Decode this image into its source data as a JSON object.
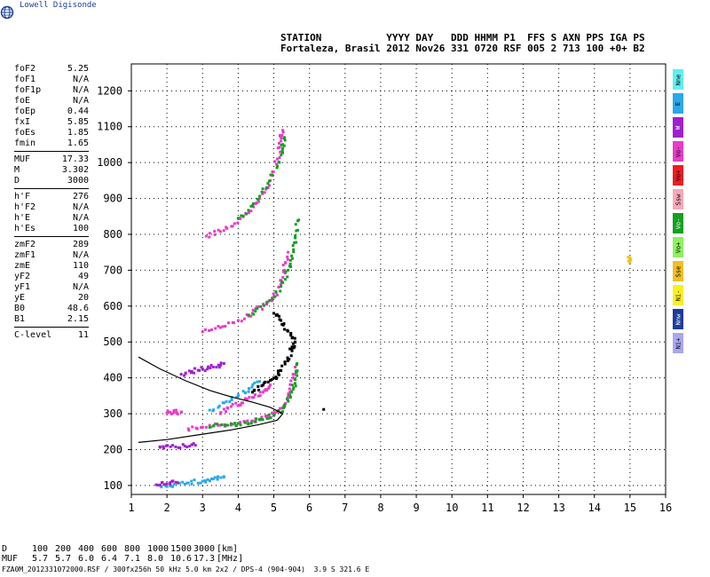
{
  "app": {
    "logo_text": "Lowell Digisonde"
  },
  "header": {
    "line1": "STATION           YYYY DAY   DDD HHMM P1  FFS S AXN PPS IGA PS",
    "line2": "Fortaleza, Brasil 2012 Nov26 331 0720 RSF 005 2 713 100 +0+ B2"
  },
  "params": {
    "group1": [
      {
        "label": "foF2",
        "value": "5.25"
      },
      {
        "label": "foF1",
        "value": "N/A"
      },
      {
        "label": "foF1p",
        "value": "N/A"
      },
      {
        "label": "foE",
        "value": "N/A"
      },
      {
        "label": "foEp",
        "value": "0.44"
      },
      {
        "label": "fxI",
        "value": "5.85"
      },
      {
        "label": "foEs",
        "value": "1.85"
      },
      {
        "label": "fmin",
        "value": "1.65"
      }
    ],
    "group2": [
      {
        "label": "MUF",
        "value": "17.33"
      },
      {
        "label": "M",
        "value": "3.302"
      },
      {
        "label": "D",
        "value": "3000"
      }
    ],
    "group3": [
      {
        "label": "h'F",
        "value": "276"
      },
      {
        "label": "h'F2",
        "value": "N/A"
      },
      {
        "label": "h'E",
        "value": "N/A"
      },
      {
        "label": "h'Es",
        "value": "100"
      }
    ],
    "group4": [
      {
        "label": "zmF2",
        "value": "289"
      },
      {
        "label": "zmF1",
        "value": "N/A"
      },
      {
        "label": "zmE",
        "value": "110"
      },
      {
        "label": "yF2",
        "value": "49"
      },
      {
        "label": "yF1",
        "value": "N/A"
      },
      {
        "label": "yE",
        "value": "20"
      },
      {
        "label": "B0",
        "value": "48.6"
      },
      {
        "label": "B1",
        "value": "2.15"
      }
    ],
    "group5": [
      {
        "label": "C-level",
        "value": "11"
      }
    ]
  },
  "legend": [
    {
      "label": "Nne",
      "color": "#5ff0f0"
    },
    {
      "label": "E",
      "color": "#2aa8e8"
    },
    {
      "label": "W",
      "color": "#a020d0"
    },
    {
      "label": "Vo-",
      "color": "#e83cc8"
    },
    {
      "label": "Vo+",
      "color": "#ee1c24"
    },
    {
      "label": "Ssw",
      "color": "#f6a8b8"
    },
    {
      "label": "Vo-",
      "color": "#14a020"
    },
    {
      "label": "Vo+",
      "color": "#8ef060"
    },
    {
      "label": "Sse",
      "color": "#f0c020"
    },
    {
      "label": "Ni-",
      "color": "#f8f020"
    },
    {
      "label": "Nnw",
      "color": "#1c3c9c"
    },
    {
      "label": "Ni+",
      "color": "#a8a8f0"
    }
  ],
  "chart_data": {
    "type": "scatter",
    "xlim": [
      1,
      16
    ],
    "ylim": [
      75,
      1275
    ],
    "xticks": [
      "1",
      "2",
      "3",
      "4",
      "5",
      "6",
      "7",
      "8",
      "9",
      "10",
      "11",
      "12",
      "13",
      "14",
      "15",
      "16"
    ],
    "yticks": [
      "100",
      "200",
      "300",
      "400",
      "500",
      "600",
      "700",
      "800",
      "900",
      "1000",
      "1100",
      "1200"
    ],
    "grid": true,
    "profile_curve": {
      "name": "",
      "color": "#000000",
      "points": [
        [
          1.2,
          458
        ],
        [
          1.8,
          425
        ],
        [
          2.5,
          393
        ],
        [
          3.2,
          365
        ],
        [
          3.8,
          347
        ],
        [
          4.4,
          332
        ],
        [
          4.9,
          318
        ],
        [
          5.25,
          300
        ],
        [
          5.1,
          282
        ],
        [
          4.6,
          270
        ],
        [
          3.8,
          255
        ],
        [
          3.0,
          243
        ],
        [
          2.0,
          228
        ],
        [
          1.2,
          220
        ]
      ]
    },
    "traces": [
      {
        "name": "F-layer trace",
        "color": "#e83cc8",
        "points": [
          [
            2.6,
            258
          ],
          [
            3.0,
            263
          ],
          [
            3.5,
            268
          ],
          [
            4.0,
            273
          ],
          [
            4.4,
            280
          ],
          [
            4.8,
            290
          ],
          [
            5.1,
            305
          ],
          [
            5.3,
            325
          ],
          [
            5.45,
            360
          ],
          [
            5.55,
            400
          ],
          [
            5.6,
            430
          ]
        ]
      },
      {
        "name": "F-layer trace",
        "color": "#14a020",
        "points": [
          [
            3.2,
            262
          ],
          [
            3.7,
            268
          ],
          [
            4.2,
            275
          ],
          [
            4.6,
            283
          ],
          [
            5.0,
            295
          ],
          [
            5.3,
            320
          ],
          [
            5.5,
            360
          ],
          [
            5.6,
            395
          ],
          [
            5.65,
            440
          ]
        ]
      },
      {
        "name": "second hop",
        "color": "#e83cc8",
        "points": [
          [
            3.0,
            528
          ],
          [
            3.5,
            540
          ],
          [
            4.0,
            560
          ],
          [
            4.4,
            580
          ],
          [
            4.8,
            605
          ],
          [
            5.0,
            625
          ],
          [
            5.2,
            660
          ],
          [
            5.3,
            700
          ],
          [
            5.4,
            750
          ]
        ]
      },
      {
        "name": "second hop",
        "color": "#14a020",
        "points": [
          [
            4.3,
            575
          ],
          [
            4.8,
            610
          ],
          [
            5.2,
            655
          ],
          [
            5.4,
            700
          ],
          [
            5.5,
            740
          ],
          [
            5.6,
            790
          ],
          [
            5.7,
            840
          ]
        ]
      },
      {
        "name": "third hop",
        "color": "#e83cc8",
        "points": [
          [
            3.1,
            795
          ],
          [
            3.5,
            808
          ],
          [
            3.9,
            830
          ],
          [
            4.3,
            860
          ],
          [
            4.6,
            900
          ],
          [
            4.9,
            950
          ],
          [
            5.1,
            1010
          ],
          [
            5.2,
            1060
          ],
          [
            5.25,
            1090
          ]
        ]
      },
      {
        "name": "third hop",
        "color": "#14a020",
        "points": [
          [
            4.0,
            845
          ],
          [
            4.4,
            880
          ],
          [
            4.8,
            930
          ],
          [
            5.1,
            990
          ],
          [
            5.25,
            1040
          ],
          [
            5.3,
            1070
          ]
        ]
      },
      {
        "name": "sporadic E",
        "color": "#2aa8e8",
        "points": [
          [
            1.8,
            100
          ],
          [
            2.2,
            103
          ],
          [
            2.6,
            107
          ],
          [
            3.0,
            112
          ],
          [
            3.3,
            118
          ],
          [
            3.6,
            125
          ]
        ]
      },
      {
        "name": "sporadic E",
        "color": "#a020d0",
        "points": [
          [
            1.7,
            102
          ],
          [
            2.0,
            105
          ],
          [
            2.3,
            108
          ]
        ]
      },
      {
        "name": "Es second hop",
        "color": "#a020d0",
        "points": [
          [
            1.8,
            208
          ],
          [
            2.1,
            208
          ],
          [
            2.5,
            210
          ],
          [
            2.8,
            212
          ]
        ]
      },
      {
        "name": "spread F",
        "color": "#a020d0",
        "points": [
          [
            2.4,
            410
          ],
          [
            2.7,
            418
          ],
          [
            3.0,
            425
          ],
          [
            3.3,
            430
          ],
          [
            3.6,
            440
          ]
        ]
      },
      {
        "name": "spread F",
        "color": "#000000",
        "points": [
          [
            4.4,
            360
          ],
          [
            4.7,
            380
          ],
          [
            5.0,
            400
          ],
          [
            5.2,
            420
          ],
          [
            5.4,
            450
          ],
          [
            5.5,
            480
          ],
          [
            5.6,
            500
          ],
          [
            5.4,
            530
          ],
          [
            5.2,
            560
          ],
          [
            5.0,
            580
          ]
        ]
      },
      {
        "name": "spread F",
        "color": "#e83cc8",
        "points": [
          [
            3.5,
            300
          ],
          [
            3.8,
            320
          ],
          [
            4.1,
            330
          ],
          [
            4.4,
            345
          ],
          [
            4.7,
            360
          ],
          [
            4.9,
            380
          ]
        ]
      },
      {
        "name": "spread F",
        "color": "#2aa8e8",
        "points": [
          [
            3.2,
            310
          ],
          [
            3.6,
            330
          ],
          [
            4.0,
            350
          ],
          [
            4.3,
            370
          ],
          [
            4.6,
            390
          ]
        ]
      },
      {
        "name": "isolated",
        "color": "#e83cc8",
        "points": [
          [
            2.0,
            302
          ],
          [
            2.2,
            304
          ],
          [
            2.4,
            305
          ]
        ]
      },
      {
        "name": "isolated",
        "color": "#f0c020",
        "points": [
          [
            15.0,
            722
          ],
          [
            15.0,
            735
          ]
        ]
      },
      {
        "name": "isolated",
        "color": "#000000",
        "points": [
          [
            6.4,
            312
          ]
        ]
      }
    ]
  },
  "bottom_table": {
    "d_label": "D",
    "d_values": [
      "100",
      "200",
      "400",
      "600",
      "800",
      "1000",
      "1500",
      "3000"
    ],
    "d_unit": "[km]",
    "muf_label": "MUF",
    "muf_values": [
      "5.7",
      "5.7",
      "6.0",
      "6.4",
      "7.1",
      "8.0",
      "10.6",
      "17.3"
    ],
    "muf_unit": "[MHz]"
  },
  "footer": "FZA0M_2012331072000.RSF / 300fx256h 50 kHz 5.0 km 2x2 / DPS-4 (904-904)  3.9 S 321.6 E"
}
